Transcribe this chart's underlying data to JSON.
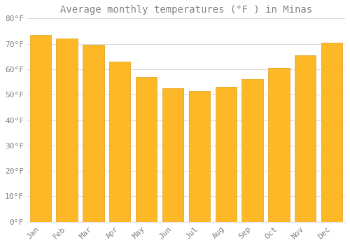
{
  "title": "Average monthly temperatures (°F ) in Minas",
  "months": [
    "Jan",
    "Feb",
    "Mar",
    "Apr",
    "May",
    "Jun",
    "Jul",
    "Aug",
    "Sep",
    "Oct",
    "Nov",
    "Dec"
  ],
  "values": [
    73.5,
    72.0,
    69.5,
    63.0,
    57.0,
    52.5,
    51.5,
    53.0,
    56.0,
    60.5,
    65.5,
    70.5
  ],
  "bar_color": "#FDB827",
  "bar_edge_color": "#E8A020",
  "background_color": "#FFFFFF",
  "grid_color": "#DDDDDD",
  "text_color": "#888888",
  "ylim": [
    0,
    80
  ],
  "yticks": [
    0,
    10,
    20,
    30,
    40,
    50,
    60,
    70,
    80
  ],
  "title_fontsize": 10,
  "tick_fontsize": 8,
  "font_family": "monospace"
}
